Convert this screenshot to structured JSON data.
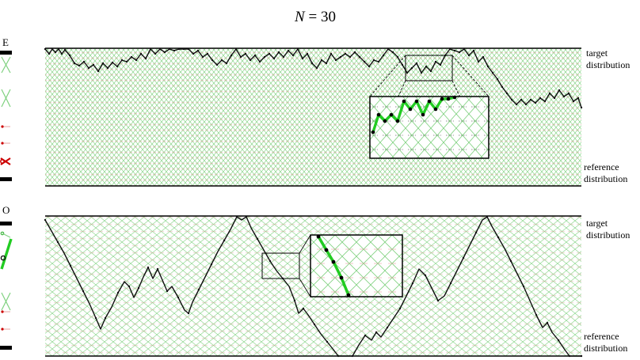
{
  "figure": {
    "title": "N = 30",
    "title_var": "N",
    "title_rest": " = 30",
    "colors": {
      "lattice": "#7fd17f",
      "walk": "#111111",
      "highlight": "#22cc22",
      "rung": "#e8a0a0",
      "reference_marker": "#cc0000",
      "frame": "#000000"
    }
  },
  "panels": [
    {
      "id": "E",
      "side_label": "E",
      "top_label": [
        "target",
        "distribution"
      ],
      "bottom_label": [
        "reference",
        "distribution"
      ],
      "inset_shown": true
    },
    {
      "id": "O",
      "side_label": "O",
      "top_label": [
        "target",
        "distribution"
      ],
      "bottom_label": [
        "reference",
        "distribution"
      ],
      "inset_shown": true
    }
  ]
}
